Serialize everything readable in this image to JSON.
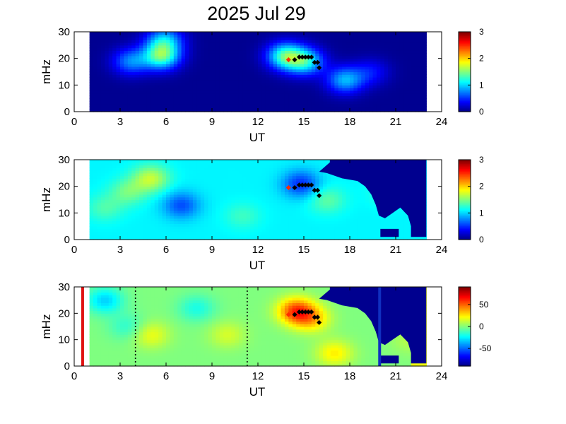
{
  "figure": {
    "title": "2025 Jul 29"
  },
  "colors": {
    "jet_low": "#00008f",
    "jet_high": "#800000",
    "marker_black": "#000000",
    "marker_red": "#ff2a00"
  },
  "chart_data": [
    {
      "type": "heatmap",
      "xlabel": "UT",
      "ylabel": "mHz",
      "xlim": [
        0,
        24
      ],
      "ylim": [
        0,
        30
      ],
      "xticks": [
        "0",
        "3",
        "6",
        "9",
        "12",
        "15",
        "18",
        "21",
        "24"
      ],
      "yticks": [
        "0",
        "10",
        "20",
        "30"
      ],
      "data_x_range": [
        1,
        23
      ],
      "colorbar": {
        "min": 0,
        "max": 3,
        "ticks": [
          "0",
          "1",
          "2",
          "3"
        ]
      },
      "background_value": 0.05,
      "blobs": [
        {
          "x": 5.7,
          "y": 21,
          "value": 1.35
        },
        {
          "x": 5.9,
          "y": 27,
          "value": 0.9
        },
        {
          "x": 3.7,
          "y": 19,
          "value": 0.75
        },
        {
          "x": 13.8,
          "y": 21,
          "value": 1.3
        },
        {
          "x": 15.1,
          "y": 19,
          "value": 1.1
        },
        {
          "x": 17.7,
          "y": 12,
          "value": 0.9
        },
        {
          "x": 19.4,
          "y": 15,
          "value": 0.4
        }
      ],
      "markers": {
        "black": [
          [
            14.4,
            19.5
          ],
          [
            14.7,
            20.5
          ],
          [
            14.9,
            20.5
          ],
          [
            15.1,
            20.5
          ],
          [
            15.3,
            20.5
          ],
          [
            15.5,
            20.5
          ],
          [
            15.7,
            18.5
          ],
          [
            15.9,
            18.5
          ],
          [
            16.0,
            16.5
          ]
        ],
        "red": [
          [
            14.0,
            19.5
          ]
        ]
      }
    },
    {
      "type": "heatmap",
      "xlabel": "UT",
      "ylabel": "mHz",
      "xlim": [
        0,
        24
      ],
      "ylim": [
        0,
        30
      ],
      "xticks": [
        "0",
        "3",
        "6",
        "9",
        "12",
        "15",
        "18",
        "21",
        "24"
      ],
      "yticks": [
        "0",
        "10",
        "20",
        "30"
      ],
      "data_x_range": [
        1,
        23
      ],
      "colorbar": {
        "min": 0,
        "max": 3,
        "ticks": [
          "0",
          "1",
          "2",
          "3"
        ]
      },
      "background_value": 1.1,
      "blobs": [
        {
          "x": 7.0,
          "y": 13,
          "value": 0.6
        },
        {
          "x": 5.0,
          "y": 23,
          "value": 1.7
        },
        {
          "x": 3.5,
          "y": 18,
          "value": 1.45
        },
        {
          "x": 2.0,
          "y": 12,
          "value": 1.35
        },
        {
          "x": 11.0,
          "y": 9,
          "value": 1.3
        },
        {
          "x": 14.8,
          "y": 21,
          "value": 0.5
        },
        {
          "x": 16.5,
          "y": 15,
          "value": 1.4
        },
        {
          "x": 20.5,
          "y": 18,
          "value": 1.3
        }
      ],
      "masked_regions": [
        [
          [
            16.7,
            30
          ],
          [
            23,
            30
          ],
          [
            23,
            1
          ],
          [
            22,
            1
          ],
          [
            22,
            5
          ],
          [
            21.8,
            9
          ],
          [
            21.3,
            12
          ],
          [
            20.8,
            10
          ],
          [
            20.3,
            8
          ],
          [
            19.9,
            9
          ],
          [
            19.7,
            13
          ],
          [
            19.4,
            17
          ],
          [
            19.0,
            20
          ],
          [
            18.5,
            22
          ],
          [
            17.5,
            23
          ],
          [
            16.5,
            25
          ],
          [
            16.0,
            25.5
          ],
          [
            16.7,
            29
          ]
        ],
        [
          [
            20.0,
            4
          ],
          [
            21.2,
            4
          ],
          [
            21.2,
            1
          ],
          [
            20.0,
            1
          ]
        ]
      ],
      "markers": {
        "black": [
          [
            14.4,
            19.5
          ],
          [
            14.7,
            20.5
          ],
          [
            14.9,
            20.5
          ],
          [
            15.1,
            20.5
          ],
          [
            15.3,
            20.5
          ],
          [
            15.5,
            20.5
          ],
          [
            15.7,
            18.5
          ],
          [
            15.9,
            18.5
          ],
          [
            16.0,
            16.5
          ]
        ],
        "red": [
          [
            14.0,
            19.5
          ]
        ]
      }
    },
    {
      "type": "heatmap",
      "xlabel": "UT",
      "ylabel": "mHz",
      "xlim": [
        0,
        24
      ],
      "ylim": [
        0,
        30
      ],
      "xticks": [
        "0",
        "3",
        "6",
        "9",
        "12",
        "15",
        "18",
        "21",
        "24"
      ],
      "yticks": [
        "0",
        "10",
        "20",
        "30"
      ],
      "data_x_range": [
        1,
        23
      ],
      "colorbar": {
        "min": -90,
        "max": 90,
        "ticks": [
          "50",
          "0",
          "-50"
        ],
        "tick_values": [
          50,
          0,
          -50
        ]
      },
      "background_value": 0,
      "blobs": [
        {
          "x": 14.5,
          "y": 21,
          "value": 55
        },
        {
          "x": 15.5,
          "y": 18,
          "value": 30
        },
        {
          "x": 10.0,
          "y": 12,
          "value": 15
        },
        {
          "x": 5.0,
          "y": 12,
          "value": 20
        },
        {
          "x": 2.0,
          "y": 25,
          "value": -30
        },
        {
          "x": 3.5,
          "y": 15,
          "value": -15
        },
        {
          "x": 8.0,
          "y": 22,
          "value": -18
        },
        {
          "x": 17.0,
          "y": 5,
          "value": 25
        },
        {
          "x": 22.0,
          "y": 10,
          "value": 10
        }
      ],
      "masked_regions": [
        [
          [
            16.7,
            30
          ],
          [
            23,
            30
          ],
          [
            23,
            1
          ],
          [
            22,
            1
          ],
          [
            22,
            5
          ],
          [
            21.8,
            9
          ],
          [
            21.3,
            12
          ],
          [
            20.8,
            10
          ],
          [
            20.3,
            8
          ],
          [
            19.9,
            9
          ],
          [
            19.7,
            13
          ],
          [
            19.4,
            17
          ],
          [
            19.0,
            20
          ],
          [
            18.5,
            22
          ],
          [
            17.5,
            23
          ],
          [
            16.5,
            25
          ],
          [
            16.0,
            25.5
          ],
          [
            16.7,
            29
          ]
        ],
        [
          [
            20.0,
            4
          ],
          [
            21.2,
            4
          ],
          [
            21.2,
            1
          ],
          [
            20.0,
            1
          ]
        ]
      ],
      "bands": [
        {
          "x0": 22.0,
          "x1": 23.0,
          "value": 20
        }
      ],
      "vlines": [
        {
          "x": 0.55,
          "style": "solid",
          "color": "#e01010"
        },
        {
          "x": 4.0,
          "style": "dotted",
          "color": "#000000"
        },
        {
          "x": 11.3,
          "style": "dotted",
          "color": "#000000"
        },
        {
          "x": 19.95,
          "style": "solid",
          "color": "#1030c0"
        }
      ],
      "markers": {
        "black": [
          [
            14.4,
            19.5
          ],
          [
            14.7,
            20.5
          ],
          [
            14.9,
            20.5
          ],
          [
            15.1,
            20.5
          ],
          [
            15.3,
            20.5
          ],
          [
            15.5,
            20.5
          ],
          [
            15.7,
            18.5
          ],
          [
            15.9,
            18.5
          ],
          [
            16.0,
            16.5
          ]
        ],
        "red": [
          [
            14.0,
            19.5
          ]
        ]
      }
    }
  ]
}
